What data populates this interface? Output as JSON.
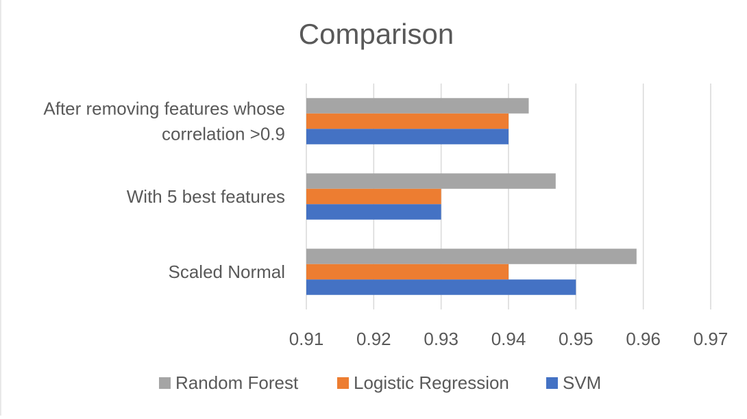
{
  "chart_data": {
    "type": "bar",
    "orientation": "horizontal",
    "title": "Comparison",
    "xlabel": "",
    "ylabel": "",
    "xlim": [
      0.91,
      0.97
    ],
    "x_ticks": [
      "0.91",
      "0.92",
      "0.93",
      "0.94",
      "0.95",
      "0.96",
      "0.97"
    ],
    "x_tick_values": [
      0.91,
      0.92,
      0.93,
      0.94,
      0.95,
      0.96,
      0.97
    ],
    "grid": true,
    "legend_position": "bottom",
    "categories": [
      {
        "lines": [
          "After removing features whose",
          "correlation >0.9"
        ]
      },
      {
        "lines": [
          "With 5  best features"
        ]
      },
      {
        "lines": [
          "Scaled Normal"
        ]
      }
    ],
    "series": [
      {
        "name": "Random Forest",
        "color": "#a5a5a5",
        "values": [
          0.943,
          0.947,
          0.959
        ]
      },
      {
        "name": "Logistic Regression",
        "color": "#ed7d31",
        "values": [
          0.94,
          0.93,
          0.94
        ]
      },
      {
        "name": "SVM",
        "color": "#4472c4",
        "values": [
          0.94,
          0.93,
          0.95
        ]
      }
    ]
  }
}
